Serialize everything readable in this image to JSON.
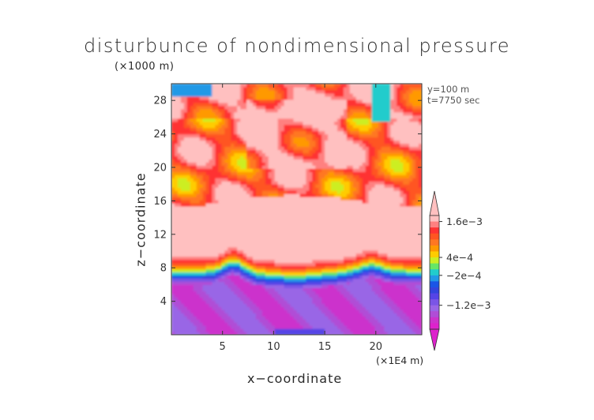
{
  "chart_data": {
    "type": "heatmap",
    "title": "disturbunce of nondimensional pressure",
    "xlabel": "x−coordinate",
    "ylabel": "z−coordinate",
    "x_unit": "(×1E4 m)",
    "y_unit": "(×1000 m)",
    "annotations": [
      "y=100  m",
      "t=7750  sec"
    ],
    "xlim": [
      0,
      24.5
    ],
    "ylim": [
      0,
      30
    ],
    "x_ticks": [
      "5",
      "10",
      "15",
      "20"
    ],
    "x_tick_values": [
      5,
      10,
      15,
      20
    ],
    "y_ticks": [
      "4",
      "8",
      "12",
      "16",
      "20",
      "24",
      "28"
    ],
    "y_tick_values": [
      4,
      8,
      12,
      16,
      20,
      24,
      28
    ],
    "colorbar": {
      "labels": [
        "1.6e−3",
        "4e−4",
        "−2e−4",
        "−1.2e−3"
      ],
      "label_values": [
        0.0016,
        0.0004,
        -0.0002,
        -0.0012
      ],
      "levels": [
        -0.0018,
        -0.0016,
        -0.0014,
        -0.0012,
        -0.001,
        -0.0008,
        -0.0006,
        -0.0004,
        -0.0002,
        0,
        0.0002,
        0.0004,
        0.0006,
        0.0008,
        0.001,
        0.0012,
        0.0014,
        0.0016,
        0.0018
      ],
      "colors": [
        "#dd22cc",
        "#cc33cc",
        "#b04dd6",
        "#9966e6",
        "#7a55e6",
        "#5544e6",
        "#3344dd",
        "#1a55e6",
        "#2299e6",
        "#22cccc",
        "#66e666",
        "#ccee22",
        "#ffcc00",
        "#ff9900",
        "#ff7722",
        "#ff5522",
        "#ff3333",
        "#ff8080",
        "#ffc0c0"
      ]
    },
    "layers": [
      {
        "z_range": [
          0,
          6
        ],
        "value_approx": -0.0015
      },
      {
        "z_range": [
          6,
          8
        ],
        "value_approx": -0.0009
      },
      {
        "z_range": [
          8,
          9.5
        ],
        "value_approx": 0.0004
      },
      {
        "z_range": [
          9.5,
          16
        ],
        "value_approx": 0.0018
      },
      {
        "z_range": [
          16,
          30
        ],
        "value_approx": 0.0012
      }
    ]
  }
}
